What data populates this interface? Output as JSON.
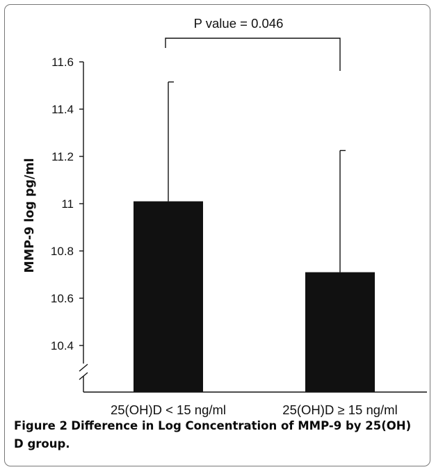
{
  "chart_data": {
    "type": "bar",
    "categories": [
      "25(OH)D < 15 ng/ml",
      "25(OH)D ≥ 15 ng/ml"
    ],
    "values": [
      11.01,
      10.71
    ],
    "error_upper": [
      11.515,
      11.225
    ],
    "ylabel": "MMP-9 log pg/ml",
    "xlabel": "",
    "ylim": [
      10.25,
      11.6
    ],
    "yticks": [
      10.4,
      10.6,
      10.8,
      11,
      11.2,
      11.4,
      11.6
    ],
    "ytick_labels": [
      "10.4",
      "10.6",
      "10.8",
      "11",
      "11.2",
      "11.4",
      "11.6"
    ],
    "axis_break": true,
    "grid": false,
    "bar_color": "#111111",
    "annotation": "P value = 0.046"
  },
  "caption": {
    "label": "Figure 2",
    "text": "Difference in Log Concentration of MMP-9 by 25(OH) D group."
  }
}
